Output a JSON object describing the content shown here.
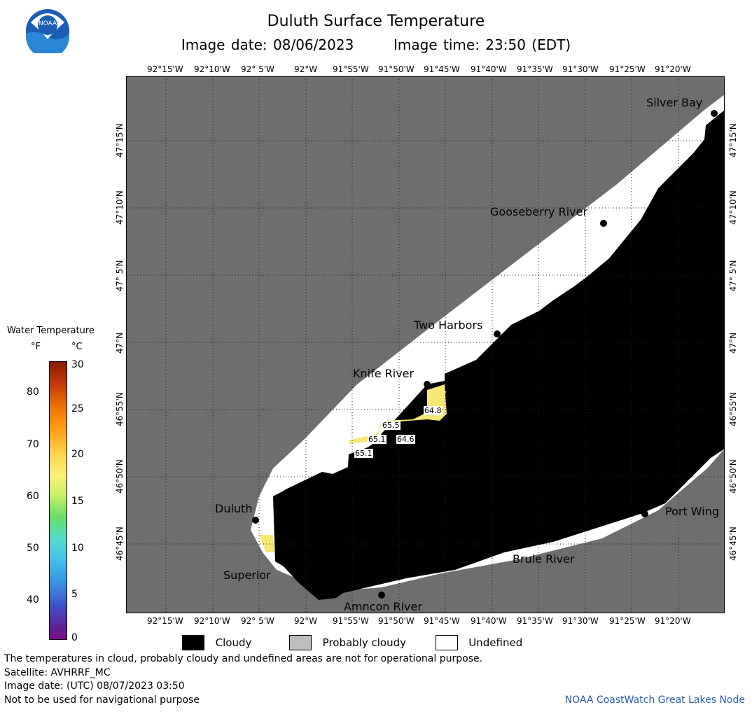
{
  "header": {
    "title": "Duluth Surface Temperature",
    "image_date": "Image date: 08/06/2023",
    "image_time": "Image time: 23:50 (EDT)"
  },
  "logo": {
    "text": "NOAA"
  },
  "map": {
    "lon_labels_top": [
      "92°15'W",
      "92°10'W",
      "92° 5'W",
      "92°W",
      "91°55'W",
      "91°50'W",
      "91°45'W",
      "91°40'W",
      "91°35'W",
      "91°30'W",
      "91°25'W",
      "91°20'W"
    ],
    "lon_labels_bottom": [
      "92°15'W",
      "92°10'W",
      "92° 5'W",
      "92°W",
      "91°55'W",
      "91°50'W",
      "91°45'W",
      "91°40'W",
      "91°35'W",
      "91°30'W",
      "91°25'W",
      "91°20'W"
    ],
    "lat_labels": [
      "47°15'N",
      "47°10'N",
      "47° 5'N",
      "47°N",
      "46°55'N",
      "46°50'N",
      "46°45'N"
    ],
    "places": {
      "silver_bay": "Silver Bay",
      "gooseberry_river": "Gooseberry River",
      "two_harbors": "Two Harbors",
      "knife_river": "Knife River",
      "duluth": "Duluth",
      "superior": "Superior",
      "amnicon_river": "Amncon River",
      "brule_river": "Brule River",
      "port_wing": "Port Wing"
    },
    "temperature_labels": [
      "64.8",
      "65.5",
      "65.1",
      "64.6",
      "65.1"
    ]
  },
  "colorbar": {
    "title": "Water Temperature",
    "unit_f": "°F",
    "unit_c": "°C",
    "f_ticks": [
      "80",
      "70",
      "60",
      "50",
      "40"
    ],
    "c_ticks": [
      "30",
      "25",
      "20",
      "15",
      "10",
      "5",
      "0"
    ]
  },
  "legend": {
    "cloudy": "Cloudy",
    "probably_cloudy": "Probably cloudy",
    "undefined": "Undefined",
    "colors": {
      "cloudy": "#000000",
      "probably_cloudy": "#bebebe",
      "undefined": "#ffffff",
      "land": "#6e6e6e"
    }
  },
  "footer": {
    "disclaimer": "The temperatures in cloud, probably cloudy and undefined areas are not for operational purpose.",
    "satellite": "Satellite: AVHRRF_MC",
    "image_date_utc": "Image date: (UTC) 08/07/2023  03:50",
    "nav_warning": "Not to be used for navigational purpose",
    "credit": "NOAA CoastWatch Great Lakes Node"
  }
}
